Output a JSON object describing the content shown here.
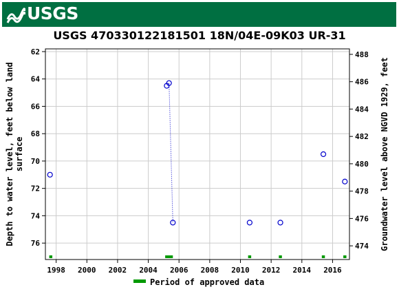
{
  "header": {
    "logo_text": "USGS",
    "logo_icon": "usgs-wave-icon",
    "brand_color": "#006f41"
  },
  "chart_data": {
    "type": "scatter",
    "title": "USGS 470330122181501 18N/04E-09K03 UR-31",
    "ylabel_left_line1": "Depth to water level, feet below land",
    "ylabel_left_line2": "surface",
    "ylabel_right": "Groundwater level above NGVD 1929, feet",
    "xlim": [
      1997.3,
      2017.1
    ],
    "ylim_left": [
      77.2,
      61.8
    ],
    "ylim_right": [
      473.0,
      488.4
    ],
    "x_ticks": [
      1998,
      2000,
      2002,
      2004,
      2006,
      2008,
      2010,
      2012,
      2014,
      2016
    ],
    "x_tick_labels": [
      "1998",
      "2000",
      "2002",
      "2004",
      "2006",
      "2008",
      "2010",
      "2012",
      "2014",
      "2016"
    ],
    "y_ticks_left": [
      62,
      64,
      66,
      68,
      70,
      72,
      74,
      76
    ],
    "y_tick_labels_left": [
      "62",
      "64",
      "66",
      "68",
      "70",
      "72",
      "74",
      "76"
    ],
    "y_ticks_right": [
      474,
      476,
      478,
      480,
      482,
      484,
      486,
      488
    ],
    "y_tick_labels_right": [
      "474",
      "476",
      "478",
      "480",
      "482",
      "484",
      "486",
      "488"
    ],
    "grid": true,
    "series": [
      {
        "points": [
          {
            "x": 1997.6,
            "y": 71.0
          },
          {
            "x": 2005.2,
            "y": 64.5
          },
          {
            "x": 2005.35,
            "y": 64.3
          },
          {
            "x": 2005.6,
            "y": 74.5
          },
          {
            "x": 2010.6,
            "y": 74.5
          },
          {
            "x": 2012.6,
            "y": 74.5
          },
          {
            "x": 2015.4,
            "y": 69.5
          },
          {
            "x": 2016.8,
            "y": 71.5
          }
        ],
        "marker_color": "#0000cc",
        "connected_segment": [
          [
            2005.35,
            64.3
          ],
          [
            2005.6,
            74.5
          ]
        ]
      }
    ],
    "approved_periods": [
      [
        1997.55,
        1997.75
      ],
      [
        2005.1,
        2005.6
      ],
      [
        2010.5,
        2010.7
      ],
      [
        2012.5,
        2012.7
      ],
      [
        2015.3,
        2015.5
      ],
      [
        2016.7,
        2016.9
      ]
    ],
    "approved_color": "#009900",
    "legend": {
      "label": "Period of approved data",
      "placement": "bottom-center"
    }
  }
}
